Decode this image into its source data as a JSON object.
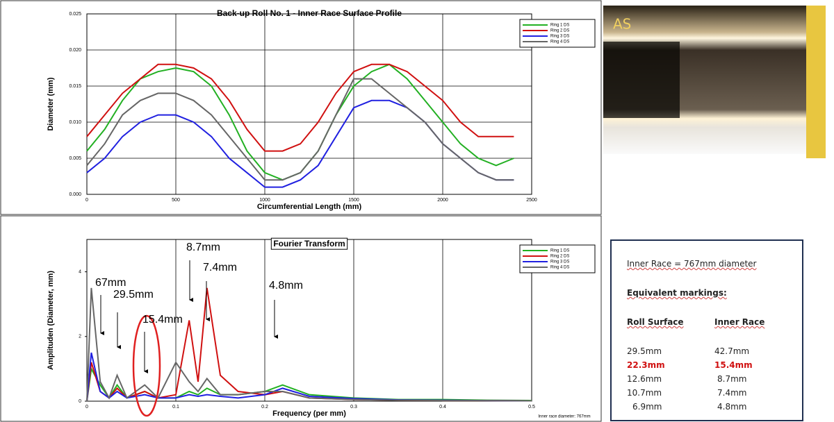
{
  "chart_data": [
    {
      "type": "line",
      "title": "Back-up Roll No. 1 - Inner Race  Surface Profile",
      "x_label": "Circumferential Length (mm)",
      "y_label": "Diameter (mm)",
      "x": [
        0,
        100,
        200,
        300,
        400,
        500,
        600,
        700,
        800,
        900,
        1000,
        1100,
        1200,
        1300,
        1400,
        1500,
        1600,
        1700,
        1800,
        1900,
        2000,
        2100,
        2200,
        2300,
        2400
      ],
      "series": [
        {
          "name": "Ring 1 DS",
          "color": "#22b022",
          "values": [
            0.006,
            0.009,
            0.013,
            0.016,
            0.017,
            0.0175,
            0.017,
            0.015,
            0.011,
            0.006,
            0.003,
            0.002,
            0.003,
            0.006,
            0.011,
            0.015,
            0.017,
            0.018,
            0.016,
            0.013,
            0.01,
            0.007,
            0.005,
            0.004,
            0.005
          ]
        },
        {
          "name": "Ring 2 DS",
          "color": "#d01010",
          "values": [
            0.008,
            0.011,
            0.014,
            0.016,
            0.018,
            0.018,
            0.0175,
            0.016,
            0.013,
            0.009,
            0.006,
            0.006,
            0.007,
            0.01,
            0.014,
            0.017,
            0.018,
            0.018,
            0.017,
            0.015,
            0.013,
            0.01,
            0.008,
            0.008,
            0.008
          ]
        },
        {
          "name": "Ring 3 DS",
          "color": "#2020e0",
          "values": [
            0.003,
            0.005,
            0.008,
            0.01,
            0.011,
            0.011,
            0.01,
            0.008,
            0.005,
            0.003,
            0.001,
            0.001,
            0.002,
            0.004,
            0.008,
            0.012,
            0.013,
            0.013,
            0.012,
            0.01,
            0.007,
            0.005,
            0.003,
            0.002,
            0.002
          ]
        },
        {
          "name": "Ring 4 DS",
          "color": "#666666",
          "values": [
            0.004,
            0.007,
            0.011,
            0.013,
            0.014,
            0.014,
            0.013,
            0.011,
            0.008,
            0.005,
            0.002,
            0.002,
            0.003,
            0.006,
            0.011,
            0.016,
            0.016,
            0.014,
            0.012,
            0.01,
            0.007,
            0.005,
            0.003,
            0.002,
            0.002
          ]
        }
      ],
      "xlim": [
        0,
        2500
      ],
      "xticks": [
        0,
        500,
        1000,
        1500,
        2000,
        2500
      ],
      "ylim": [
        0,
        0.025
      ],
      "yticks": [
        {
          "value": 0,
          "label": "0.000"
        },
        {
          "value": 0.005,
          "label": "0.005"
        },
        {
          "value": 0.01,
          "label": "0.010"
        },
        {
          "value": 0.015,
          "label": "0.015"
        },
        {
          "value": 0.02,
          "label": "0.020"
        },
        {
          "value": 0.025,
          "label": "0.025"
        }
      ],
      "grid": "both",
      "legend": "upper right"
    },
    {
      "type": "line",
      "title": "Fourier Transform",
      "x_label": "Frequency (per mm)",
      "y_label": "Amplituden (Diameter, mm)",
      "note": "Inner race diameter: 767mm",
      "annotations": [
        "67mm",
        "29.5mm",
        "15.4mm",
        "8.7mm",
        "7.4mm",
        "4.8mm"
      ],
      "x": [
        0,
        0.005,
        0.015,
        0.025,
        0.034,
        0.045,
        0.065,
        0.08,
        0.1,
        0.115,
        0.125,
        0.135,
        0.15,
        0.17,
        0.2,
        0.22,
        0.25,
        0.3,
        0.35,
        0.4,
        0.45,
        0.5
      ],
      "series": [
        {
          "name": "Ring 1 DS",
          "color": "#22b022",
          "values": [
            0,
            1.0,
            0.5,
            0.1,
            0.5,
            0.1,
            0.3,
            0.1,
            0.1,
            0.3,
            0.2,
            0.4,
            0.2,
            0.2,
            0.3,
            0.5,
            0.2,
            0.1,
            0.05,
            0.05,
            0.03,
            0.02
          ]
        },
        {
          "name": "Ring 2 DS",
          "color": "#d01010",
          "values": [
            0,
            1.2,
            0.3,
            0.1,
            0.4,
            0.1,
            0.3,
            0.1,
            0.2,
            2.5,
            0.6,
            3.5,
            0.8,
            0.3,
            0.2,
            0.3,
            0.1,
            0.05,
            0.03,
            0.02,
            0.02,
            0.01
          ]
        },
        {
          "name": "Ring 3 DS",
          "color": "#2020e0",
          "values": [
            0,
            1.5,
            0.3,
            0.1,
            0.3,
            0.1,
            0.2,
            0.1,
            0.1,
            0.2,
            0.15,
            0.2,
            0.15,
            0.1,
            0.2,
            0.4,
            0.15,
            0.08,
            0.04,
            0.03,
            0.02,
            0.01
          ]
        },
        {
          "name": "Ring 4 DS",
          "color": "#666666",
          "values": [
            0,
            3.5,
            0.6,
            0.1,
            0.8,
            0.1,
            0.5,
            0.1,
            1.2,
            0.6,
            0.3,
            0.7,
            0.2,
            0.2,
            0.3,
            0.3,
            0.1,
            0.05,
            0.03,
            0.02,
            0.02,
            0.01
          ]
        }
      ],
      "xlim": [
        0,
        0.5
      ],
      "xticks": [
        0,
        0.1,
        0.2,
        0.3,
        0.4,
        0.5
      ],
      "ylim": [
        0,
        5
      ],
      "yticks": [
        0,
        2,
        4
      ],
      "grid": "x",
      "legend": "upper right"
    }
  ],
  "photo_label": "AS",
  "info_box": {
    "title": "Inner Race = 767mm  diameter",
    "subtitle": "Equivalent  markings:",
    "headers": [
      "Roll Surface",
      "Inner Race"
    ],
    "rows": [
      [
        "29.5mm",
        "42.7mm"
      ],
      [
        "22.3mm",
        "15.4mm"
      ],
      [
        "12.6mm",
        "8.7mm"
      ],
      [
        "10.7mm",
        "7.4mm"
      ],
      [
        "6.9mm",
        "4.8mm"
      ]
    ]
  }
}
